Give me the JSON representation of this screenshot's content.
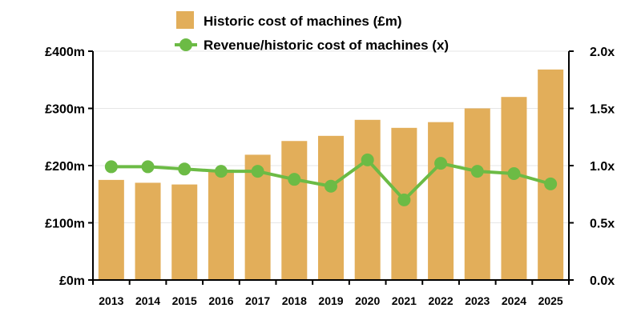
{
  "colors": {
    "bar": "#e2ae5a",
    "line": "#6cbb45",
    "axis": "#000000",
    "grid": "#e6e6e6"
  },
  "legend": {
    "bar_label": "Historic cost of machines (£m)",
    "line_label": "Revenue/historic cost of machines (x)"
  },
  "chart_data": {
    "type": "bar",
    "categories": [
      "2013",
      "2014",
      "2015",
      "2016",
      "2017",
      "2018",
      "2019",
      "2020",
      "2021",
      "2022",
      "2023",
      "2024",
      "2025"
    ],
    "series": [
      {
        "name": "Historic cost of machines (£m)",
        "type": "bar",
        "axis": "left",
        "values": [
          175,
          170,
          167,
          193,
          219,
          243,
          252,
          280,
          266,
          276,
          300,
          320,
          368
        ]
      },
      {
        "name": "Revenue/historic cost of machines (x)",
        "type": "line",
        "axis": "right",
        "values": [
          0.99,
          0.99,
          0.97,
          0.95,
          0.95,
          0.88,
          0.82,
          1.05,
          0.7,
          1.02,
          0.95,
          0.93,
          0.84
        ]
      }
    ],
    "y_left": {
      "ylim": [
        0,
        400
      ],
      "ticks": [
        0,
        100,
        200,
        300,
        400
      ],
      "tick_labels": [
        "£0m",
        "£100m",
        "£200m",
        "£300m",
        "£400m"
      ]
    },
    "y_right": {
      "ylim": [
        0,
        2.0
      ],
      "ticks": [
        0,
        0.5,
        1.0,
        1.5,
        2.0
      ],
      "tick_labels": [
        "0.0x",
        "0.5x",
        "1.0x",
        "1.5x",
        "2.0x"
      ]
    },
    "grid": true,
    "legend_position": "top-center"
  }
}
